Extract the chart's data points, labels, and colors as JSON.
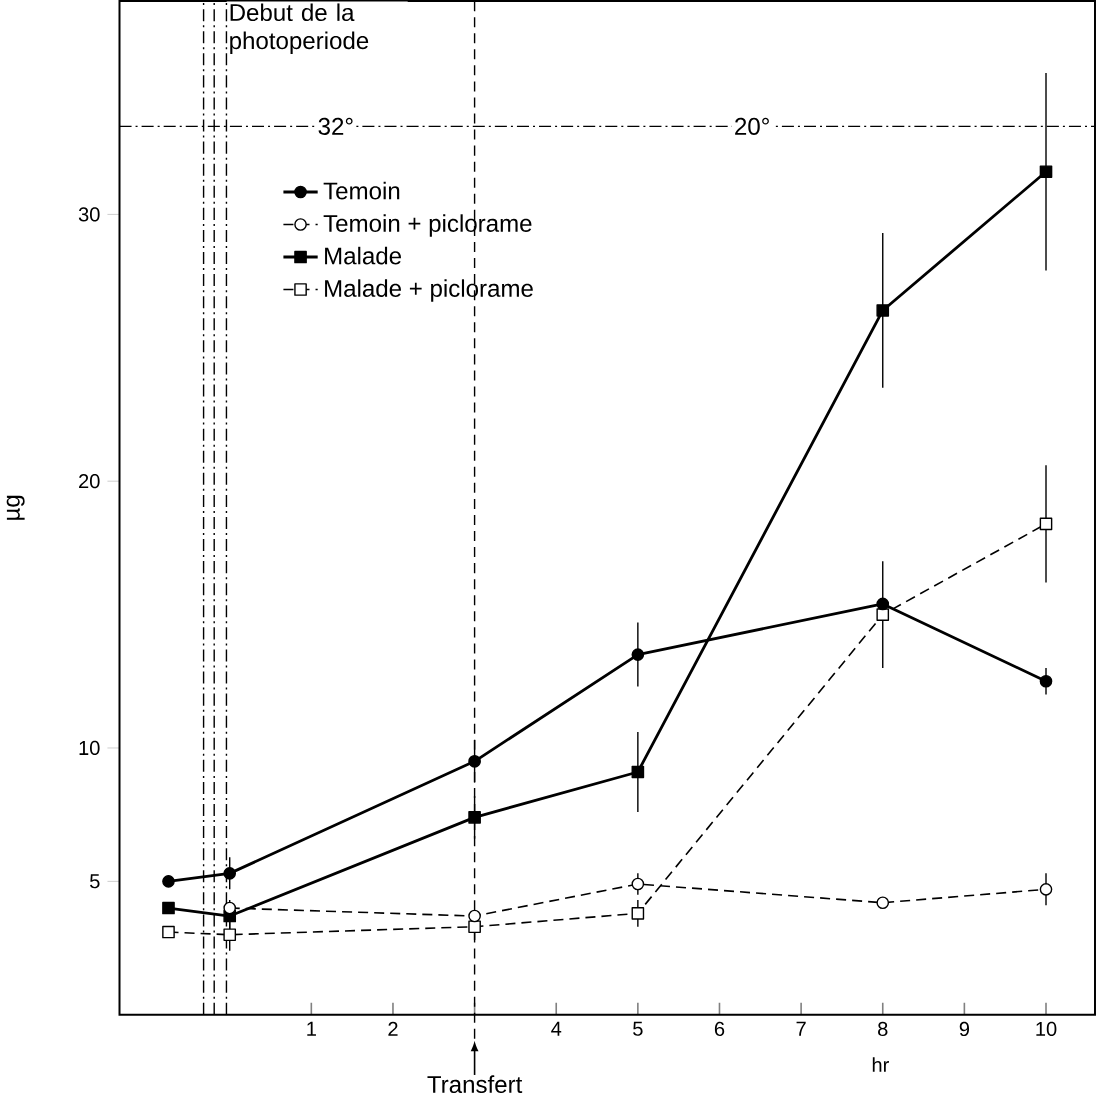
{
  "chart_data": {
    "type": "line",
    "xlabel": "hr",
    "ylabel": "µg",
    "x": [
      -0.75,
      0,
      3,
      5,
      8,
      10
    ],
    "xlim": [
      -1.35,
      10.6
    ],
    "ylim": [
      0,
      38
    ],
    "xticks": [
      1,
      2,
      {
        "value": 3,
        "label": null
      },
      4,
      5,
      6,
      7,
      8,
      9,
      10
    ],
    "yticks": [
      5,
      10,
      20,
      30
    ],
    "series": [
      {
        "name": "Temoin",
        "color": "#000000",
        "marker": "circle",
        "line_style": "solid",
        "values": [
          5.0,
          5.3,
          9.5,
          13.5,
          15.4,
          12.5
        ],
        "errors": [
          null,
          0.6,
          0.8,
          1.2,
          null,
          0.5
        ]
      },
      {
        "name": "Temoin + piclorame",
        "color": "#000000",
        "marker": "circle",
        "line_style": "dashed",
        "values": [
          null,
          4.0,
          3.7,
          4.9,
          4.2,
          4.7
        ],
        "errors": [
          null,
          null,
          null,
          0.4,
          null,
          0.6
        ]
      },
      {
        "name": "Malade",
        "color": "#000000",
        "marker": "square",
        "line_style": "solid",
        "values": [
          4.0,
          3.7,
          7.4,
          9.1,
          26.4,
          31.6
        ],
        "errors": [
          null,
          0.6,
          0.8,
          1.5,
          2.9,
          3.7
        ]
      },
      {
        "name": "Malade + piclorame",
        "color": "#000000",
        "marker": "square",
        "line_style": "dashed",
        "values": [
          3.1,
          3.0,
          3.3,
          3.8,
          15.0,
          18.4
        ],
        "errors": [
          null,
          0.6,
          0.5,
          0.5,
          2.0,
          2.2
        ]
      }
    ],
    "ref_lines": [
      {
        "axis": "x",
        "value": 3,
        "label": "Transfert",
        "line_style": "dashed"
      },
      {
        "axis": "x",
        "value": -0.32,
        "line_style": "dashdot"
      },
      {
        "axis": "x",
        "value": -0.19,
        "line_style": "dashdot",
        "label": "Debut de la photoperiode"
      },
      {
        "axis": "x",
        "value": -0.04,
        "line_style": "dashdot"
      },
      {
        "axis": "y",
        "value": 33.3,
        "line_style": "dashdot"
      }
    ],
    "annotations": [
      {
        "text": "32°",
        "x": 1.3,
        "y": 33.3
      },
      {
        "text": "20°",
        "x": 6.4,
        "y": 33.3
      }
    ],
    "legend": "top left"
  }
}
